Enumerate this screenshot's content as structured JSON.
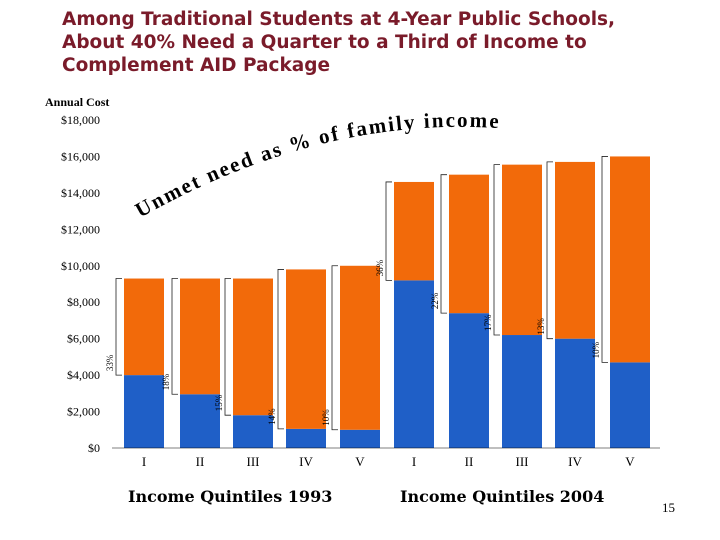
{
  "title_lines": [
    "Among Traditional Students at 4-Year Public Schools,",
    "About 40% Need a Quarter to a Third of Income to",
    "Complement AID Package"
  ],
  "annotation": "Unmet need as % of family income",
  "captions": [
    "Income Quintiles 1993",
    "Income Quintiles 2004"
  ],
  "page_number": "15",
  "chart_data": {
    "type": "bar",
    "stacked": true,
    "ylabel": "Annual Cost",
    "ylim": [
      0,
      18000
    ],
    "yticks": [
      0,
      2000,
      4000,
      6000,
      8000,
      10000,
      12000,
      14000,
      16000,
      18000
    ],
    "ytick_labels": [
      "$0",
      "$2,000",
      "$4,000",
      "$6,000",
      "$8,000",
      "$10,000",
      "$12,000",
      "$14,000",
      "$16,000",
      "$18,000"
    ],
    "categories": [
      "I",
      "II",
      "III",
      "IV",
      "V",
      "I",
      "II",
      "III",
      "IV",
      "V"
    ],
    "groups": [
      {
        "label": "Income Quintiles 1993",
        "indices": [
          0,
          1,
          2,
          3,
          4
        ]
      },
      {
        "label": "Income Quintiles 2004",
        "indices": [
          5,
          6,
          7,
          8,
          9
        ]
      }
    ],
    "series": [
      {
        "color": "#1f5fc7",
        "values": [
          4000,
          2950,
          1800,
          1050,
          1000,
          9200,
          7400,
          6200,
          6000,
          4700
        ]
      },
      {
        "color": "#f26a0a",
        "values": [
          5300,
          6350,
          7500,
          8750,
          9000,
          5400,
          7600,
          9350,
          9700,
          11300
        ]
      }
    ],
    "bracket_labels": [
      "33%",
      "18%",
      "15%",
      "14%",
      "10%",
      "36%",
      "22%",
      "17%",
      "13%",
      "10%"
    ],
    "grid": false,
    "legend": "none"
  }
}
